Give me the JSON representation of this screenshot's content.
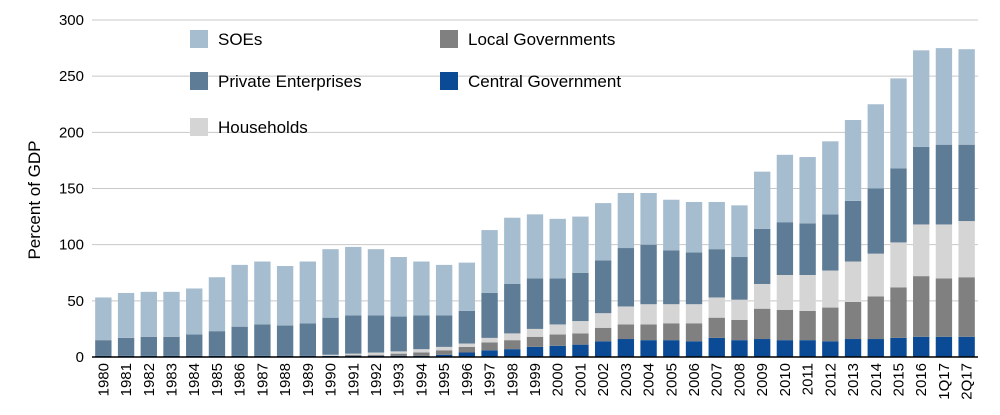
{
  "chart_data": {
    "type": "bar",
    "stacked": true,
    "title": "",
    "xlabel": "",
    "ylabel": "Percent of GDP",
    "ylim": [
      0,
      300
    ],
    "yticks": [
      0,
      50,
      100,
      150,
      200,
      250,
      300
    ],
    "grid": true,
    "legend_position": "top-left",
    "categories": [
      "1980",
      "1981",
      "1982",
      "1983",
      "1984",
      "1985",
      "1986",
      "1987",
      "1988",
      "1989",
      "1990",
      "1991",
      "1992",
      "1993",
      "1994",
      "1995",
      "1996",
      "1997",
      "1998",
      "1999",
      "2000",
      "2001",
      "2002",
      "2003",
      "2004",
      "2005",
      "2006",
      "2007",
      "2008",
      "2009",
      "2010",
      "2011",
      "2012",
      "2013",
      "2014",
      "2015",
      "2016",
      "1Q17",
      "2Q17"
    ],
    "series": [
      {
        "name": "Central Government",
        "color": "#0b4a95",
        "values": [
          1,
          1,
          1,
          1,
          1,
          1,
          1,
          1,
          1,
          1,
          1,
          1,
          1,
          1,
          1,
          2,
          4,
          6,
          7,
          9,
          10,
          11,
          14,
          16,
          15,
          15,
          14,
          17,
          15,
          16,
          15,
          15,
          14,
          16,
          16,
          17,
          18,
          18,
          18
        ]
      },
      {
        "name": "Local Governments",
        "color": "#808080",
        "values": [
          0,
          0,
          0,
          0,
          0,
          0,
          0,
          0,
          0,
          0,
          0,
          1,
          1,
          2,
          3,
          4,
          5,
          7,
          8,
          9,
          10,
          10,
          12,
          13,
          14,
          15,
          16,
          18,
          18,
          27,
          27,
          26,
          30,
          33,
          38,
          45,
          54,
          52,
          53
        ]
      },
      {
        "name": "Households",
        "color": "#d5d5d5",
        "values": [
          0,
          0,
          0,
          0,
          0,
          0,
          0,
          0,
          0,
          0,
          1,
          1,
          2,
          2,
          3,
          3,
          3,
          4,
          6,
          7,
          9,
          11,
          13,
          16,
          18,
          17,
          17,
          18,
          18,
          22,
          31,
          32,
          33,
          36,
          38,
          40,
          46,
          48,
          50
        ]
      },
      {
        "name": "Private Enterprises",
        "color": "#5e7c95",
        "values": [
          14,
          16,
          17,
          17,
          19,
          22,
          26,
          28,
          27,
          29,
          33,
          34,
          33,
          31,
          30,
          28,
          29,
          40,
          44,
          45,
          41,
          43,
          47,
          52,
          53,
          48,
          46,
          43,
          38,
          49,
          47,
          46,
          50,
          54,
          58,
          66,
          69,
          71,
          68
        ]
      },
      {
        "name": "SOEs",
        "color": "#a6bdd0",
        "values": [
          38,
          40,
          40,
          40,
          41,
          48,
          55,
          56,
          53,
          55,
          61,
          61,
          59,
          53,
          48,
          45,
          43,
          56,
          59,
          57,
          53,
          50,
          51,
          49,
          46,
          45,
          45,
          42,
          46,
          51,
          60,
          59,
          65,
          72,
          75,
          80,
          86,
          86,
          85
        ]
      }
    ],
    "legend": [
      {
        "name": "SOEs",
        "color": "#a6bdd0"
      },
      {
        "name": "Private Enterprises",
        "color": "#5e7c95"
      },
      {
        "name": "Households",
        "color": "#d5d5d5"
      },
      {
        "name": "Local Governments",
        "color": "#808080"
      },
      {
        "name": "Central Government",
        "color": "#0b4a95"
      }
    ]
  }
}
